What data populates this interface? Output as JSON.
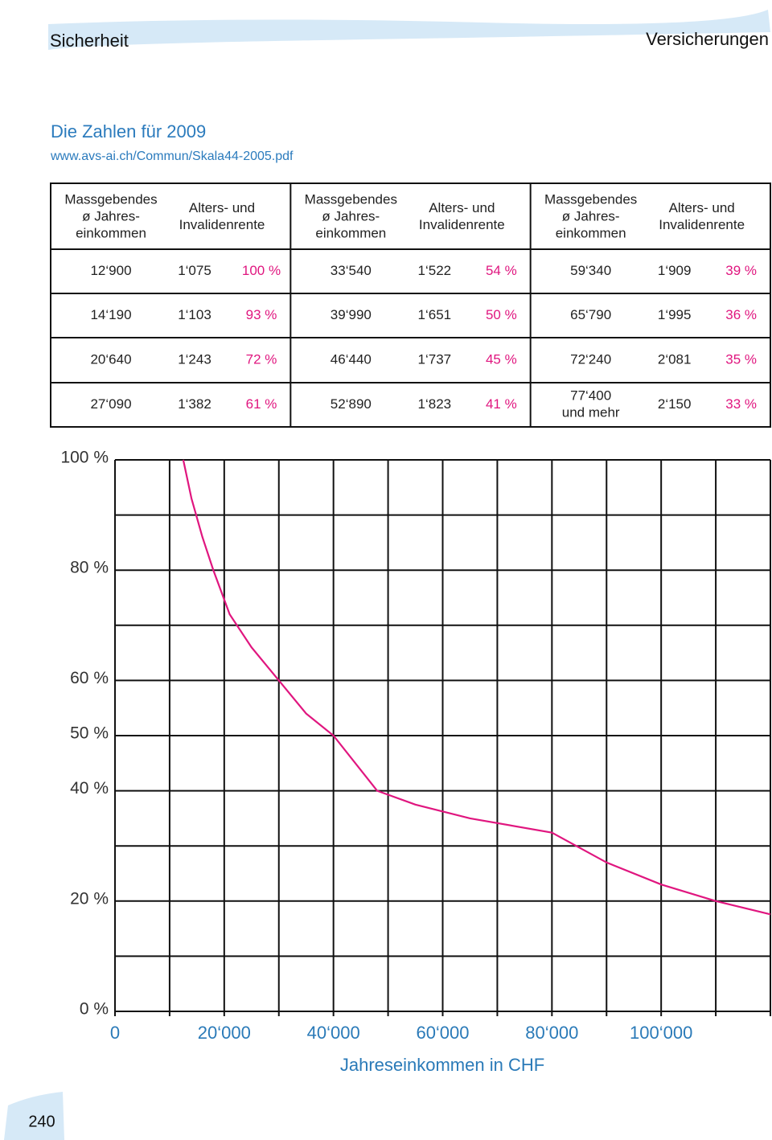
{
  "header": {
    "left": "Sicherheit",
    "right": "Versicherungen"
  },
  "intro": {
    "title": "Die Zahlen für 2009",
    "url": "www.avs-ai.ch/Commun/Skala44-2005.pdf"
  },
  "table": {
    "header": [
      [
        "Massgebendes",
        "ø Jahres-",
        "einkommen"
      ],
      [
        "Alters- und",
        "Invalidenrente"
      ],
      [
        "Massgebendes",
        "ø Jahres-",
        "einkommen"
      ],
      [
        "Alters- und",
        "Invalidenrente"
      ],
      [
        "Massgebendes",
        "ø Jahres-",
        "einkommen"
      ],
      [
        "Alters- und",
        "Invalidenrente"
      ]
    ],
    "rows": [
      [
        "12‘900",
        "1‘075",
        "100 %",
        "33‘540",
        "1‘522",
        "54 %",
        "59‘340",
        "1‘909",
        "39 %"
      ],
      [
        "14‘190",
        "1‘103",
        "93 %",
        "39‘990",
        "1‘651",
        "50 %",
        "65‘790",
        "1‘995",
        "36 %"
      ],
      [
        "20‘640",
        "1‘243",
        "72 %",
        "46‘440",
        "1‘737",
        "45 %",
        "72‘240",
        "2‘081",
        "35 %"
      ],
      [
        "27‘090",
        "1‘382",
        "61 %",
        "52‘890",
        "1‘823",
        "41 %",
        [
          "77‘400",
          "und mehr"
        ],
        "2‘150",
        "33 %"
      ]
    ]
  },
  "chart_data": {
    "type": "line",
    "xlabel": "Jahreseinkommen in CHF",
    "x": [
      12500,
      14000,
      16000,
      18000,
      21000,
      25000,
      30000,
      35000,
      40000,
      48000,
      55000,
      65000,
      80000,
      90000,
      100000,
      110000,
      120000
    ],
    "series": [
      {
        "color": "#e0167f",
        "values": [
          100,
          93,
          86,
          80,
          72,
          66,
          60,
          54,
          50,
          40,
          37.5,
          35,
          32.4,
          27,
          23,
          20,
          17.6
        ]
      }
    ],
    "xlim": [
      0,
      120000
    ],
    "ylim": [
      0,
      100
    ],
    "xticks": [
      {
        "value": 0,
        "label": "0"
      },
      {
        "value": 20000,
        "label": "20‘000"
      },
      {
        "value": 40000,
        "label": "40‘000"
      },
      {
        "value": 60000,
        "label": "60‘000"
      },
      {
        "value": 80000,
        "label": "80‘000"
      },
      {
        "value": 100000,
        "label": "100‘000"
      }
    ],
    "yticks": [
      {
        "value": 100,
        "label": "100 %"
      },
      {
        "value": 80,
        "label": "80 %"
      },
      {
        "value": 60,
        "label": "60 %"
      },
      {
        "value": 50,
        "label": "50 %"
      },
      {
        "value": 40,
        "label": "40 %"
      },
      {
        "value": 20,
        "label": "20 %"
      },
      {
        "value": 0,
        "label": "0 %"
      }
    ],
    "xgrid": [
      0,
      10000,
      20000,
      30000,
      40000,
      50000,
      60000,
      70000,
      80000,
      90000,
      100000,
      110000,
      120000
    ],
    "ygrid": [
      0,
      10,
      20,
      30,
      40,
      50,
      60,
      70,
      80,
      90,
      100
    ],
    "grid": true
  },
  "page_number": "240"
}
